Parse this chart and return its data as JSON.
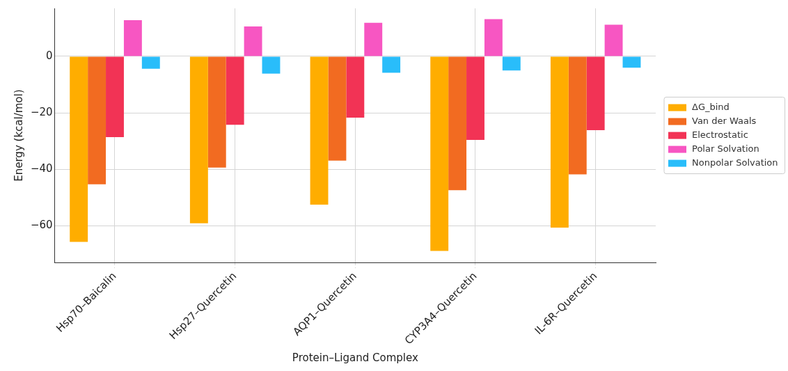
{
  "chart_data": {
    "type": "bar",
    "xlabel": "Protein–Ligand Complex",
    "ylabel": "Energy (kcal/mol)",
    "categories": [
      "Hsp70–Baicalin",
      "Hsp27–Quercetin",
      "AQP1–Quercetin",
      "CYP3A4–Quercetin",
      "IL-6R–Quercetin"
    ],
    "series": [
      {
        "name": "ΔG_bind",
        "color": "#ffad00",
        "values": [
          -65.7,
          -59.1,
          -52.5,
          -68.9,
          -60.6
        ]
      },
      {
        "name": "Van der Waals",
        "color": "#f26b21",
        "values": [
          -45.3,
          -39.4,
          -36.9,
          -47.4,
          -41.8
        ]
      },
      {
        "name": "Electrostatic",
        "color": "#f23355",
        "values": [
          -28.6,
          -24.2,
          -21.7,
          -29.6,
          -26.1
        ]
      },
      {
        "name": "Polar Solvation",
        "color": "#f756c2",
        "values": [
          12.8,
          10.6,
          11.9,
          13.2,
          11.2
        ]
      },
      {
        "name": "Nonpolar Solvation",
        "color": "#29bdfa",
        "values": [
          -4.4,
          -6.1,
          -5.8,
          -5.0,
          -4.0
        ]
      }
    ],
    "ylim": [
      -73,
      17
    ],
    "yticks": [
      -60,
      -40,
      -20,
      0
    ],
    "grid": true,
    "legend": "right"
  }
}
